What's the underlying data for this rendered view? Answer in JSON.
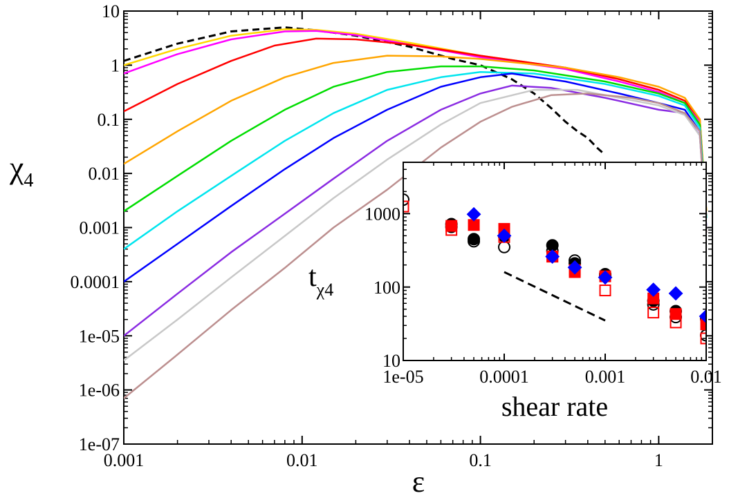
{
  "chart_data": [
    {
      "type": "line",
      "xlabel": "ε",
      "ylabel": "χ",
      "ylabel_subscript": "4",
      "xscale": "log",
      "yscale": "log",
      "xlim": [
        0.001,
        2
      ],
      "ylim": [
        1e-07,
        10
      ],
      "x_tick_labels": [
        "0.001",
        "0.01",
        "0.1",
        "1"
      ],
      "y_tick_labels": [
        "1e-07",
        "1e-06",
        "1e-05",
        "0.0001",
        "0.001",
        "0.01",
        "0.1",
        "1",
        "10"
      ],
      "grid": false,
      "series": [
        {
          "color": "#000000",
          "dashed": true,
          "points": [
            [
              0.001,
              1.2
            ],
            [
              0.002,
              2.5
            ],
            [
              0.004,
              4.2
            ],
            [
              0.008,
              5.0
            ],
            [
              0.012,
              4.4
            ],
            [
              0.02,
              3.5
            ],
            [
              0.04,
              2.2
            ],
            [
              0.07,
              1.3
            ],
            [
              0.1,
              1.0
            ],
            [
              0.15,
              0.55
            ],
            [
              0.2,
              0.3
            ],
            [
              0.25,
              0.16
            ],
            [
              0.3,
              0.09
            ],
            [
              0.35,
              0.06
            ],
            [
              0.4,
              0.045
            ],
            [
              0.45,
              0.03
            ],
            [
              0.5,
              0.022
            ]
          ]
        },
        {
          "color": "#ffd700",
          "points": [
            [
              0.001,
              1.0
            ],
            [
              0.002,
              2.0
            ],
            [
              0.004,
              3.5
            ],
            [
              0.008,
              4.6
            ],
            [
              0.012,
              4.5
            ],
            [
              0.02,
              3.8
            ],
            [
              0.04,
              2.6
            ],
            [
              0.1,
              1.5
            ],
            [
              0.3,
              0.9
            ],
            [
              0.6,
              0.55
            ],
            [
              1.0,
              0.35
            ],
            [
              1.4,
              0.22
            ],
            [
              1.7,
              0.1
            ],
            [
              1.85,
              0.002
            ]
          ]
        },
        {
          "color": "#ff00ff",
          "points": [
            [
              0.001,
              0.7
            ],
            [
              0.002,
              1.6
            ],
            [
              0.004,
              3.0
            ],
            [
              0.008,
              4.2
            ],
            [
              0.012,
              4.3
            ],
            [
              0.02,
              3.6
            ],
            [
              0.04,
              2.4
            ],
            [
              0.1,
              1.4
            ],
            [
              0.3,
              0.85
            ],
            [
              0.6,
              0.5
            ],
            [
              1.0,
              0.32
            ],
            [
              1.4,
              0.2
            ],
            [
              1.7,
              0.09
            ],
            [
              1.85,
              0.0015
            ]
          ]
        },
        {
          "color": "#ff0000",
          "points": [
            [
              0.001,
              0.14
            ],
            [
              0.002,
              0.45
            ],
            [
              0.004,
              1.2
            ],
            [
              0.007,
              2.3
            ],
            [
              0.012,
              3.1
            ],
            [
              0.02,
              3.0
            ],
            [
              0.04,
              2.4
            ],
            [
              0.1,
              1.5
            ],
            [
              0.3,
              0.9
            ],
            [
              0.6,
              0.55
            ],
            [
              1.0,
              0.35
            ],
            [
              1.4,
              0.22
            ],
            [
              1.7,
              0.1
            ],
            [
              1.85,
              0.0015
            ]
          ]
        },
        {
          "color": "#ffa500",
          "points": [
            [
              0.001,
              0.015
            ],
            [
              0.002,
              0.06
            ],
            [
              0.004,
              0.22
            ],
            [
              0.008,
              0.6
            ],
            [
              0.015,
              1.1
            ],
            [
              0.03,
              1.5
            ],
            [
              0.06,
              1.45
            ],
            [
              0.1,
              1.3
            ],
            [
              0.3,
              0.9
            ],
            [
              0.6,
              0.6
            ],
            [
              1.0,
              0.4
            ],
            [
              1.4,
              0.25
            ],
            [
              1.7,
              0.1
            ],
            [
              1.85,
              0.002
            ]
          ]
        },
        {
          "color": "#00dd00",
          "points": [
            [
              0.001,
              0.002
            ],
            [
              0.002,
              0.009
            ],
            [
              0.004,
              0.04
            ],
            [
              0.008,
              0.15
            ],
            [
              0.015,
              0.4
            ],
            [
              0.03,
              0.75
            ],
            [
              0.06,
              0.95
            ],
            [
              0.1,
              0.95
            ],
            [
              0.2,
              0.8
            ],
            [
              0.5,
              0.5
            ],
            [
              1.0,
              0.3
            ],
            [
              1.4,
              0.2
            ],
            [
              1.7,
              0.08
            ],
            [
              1.85,
              0.0015
            ]
          ]
        },
        {
          "color": "#00e5ee",
          "points": [
            [
              0.001,
              0.0004
            ],
            [
              0.002,
              0.002
            ],
            [
              0.004,
              0.009
            ],
            [
              0.008,
              0.04
            ],
            [
              0.015,
              0.13
            ],
            [
              0.03,
              0.35
            ],
            [
              0.06,
              0.6
            ],
            [
              0.1,
              0.75
            ],
            [
              0.2,
              0.7
            ],
            [
              0.5,
              0.45
            ],
            [
              1.0,
              0.27
            ],
            [
              1.4,
              0.18
            ],
            [
              1.7,
              0.07
            ],
            [
              1.85,
              0.0015
            ]
          ]
        },
        {
          "color": "#0000ff",
          "points": [
            [
              0.001,
              0.0001
            ],
            [
              0.002,
              0.0005
            ],
            [
              0.004,
              0.0025
            ],
            [
              0.008,
              0.012
            ],
            [
              0.015,
              0.045
            ],
            [
              0.03,
              0.15
            ],
            [
              0.06,
              0.4
            ],
            [
              0.1,
              0.6
            ],
            [
              0.15,
              0.7
            ],
            [
              0.3,
              0.5
            ],
            [
              0.6,
              0.3
            ],
            [
              1.0,
              0.2
            ],
            [
              1.4,
              0.15
            ],
            [
              1.7,
              0.06
            ],
            [
              1.85,
              0.001
            ]
          ]
        },
        {
          "color": "#8a2be2",
          "points": [
            [
              0.001,
              1e-05
            ],
            [
              0.002,
              6e-05
            ],
            [
              0.004,
              0.00035
            ],
            [
              0.008,
              0.0018
            ],
            [
              0.015,
              0.008
            ],
            [
              0.03,
              0.04
            ],
            [
              0.06,
              0.15
            ],
            [
              0.1,
              0.3
            ],
            [
              0.15,
              0.42
            ],
            [
              0.25,
              0.38
            ],
            [
              0.5,
              0.25
            ],
            [
              1.0,
              0.15
            ],
            [
              1.4,
              0.13
            ],
            [
              1.7,
              0.05
            ],
            [
              1.85,
              0.001
            ]
          ]
        },
        {
          "color": "#c8c8c8",
          "points": [
            [
              0.001,
              3.5e-06
            ],
            [
              0.002,
              2e-05
            ],
            [
              0.004,
              0.00012
            ],
            [
              0.008,
              0.0007
            ],
            [
              0.015,
              0.0035
            ],
            [
              0.03,
              0.018
            ],
            [
              0.06,
              0.08
            ],
            [
              0.1,
              0.2
            ],
            [
              0.2,
              0.35
            ],
            [
              0.35,
              0.35
            ],
            [
              0.6,
              0.25
            ],
            [
              1.0,
              0.18
            ],
            [
              1.4,
              0.12
            ],
            [
              1.7,
              0.05
            ],
            [
              1.85,
              0.001
            ]
          ]
        },
        {
          "color": "#bc8f8f",
          "points": [
            [
              0.001,
              7e-07
            ],
            [
              0.002,
              4.5e-06
            ],
            [
              0.004,
              3e-05
            ],
            [
              0.008,
              0.00018
            ],
            [
              0.015,
              0.001
            ],
            [
              0.03,
              0.005
            ],
            [
              0.06,
              0.03
            ],
            [
              0.1,
              0.09
            ],
            [
              0.15,
              0.17
            ],
            [
              0.25,
              0.28
            ],
            [
              0.4,
              0.3
            ],
            [
              0.7,
              0.25
            ],
            [
              1.0,
              0.2
            ],
            [
              1.4,
              0.13
            ],
            [
              1.7,
              0.06
            ],
            [
              1.85,
              0.0008
            ]
          ]
        }
      ]
    },
    {
      "type": "scatter",
      "xlabel": "shear rate",
      "ylabel": "t",
      "ylabel_subscript": "χ4",
      "xscale": "log",
      "yscale": "log",
      "xlim": [
        1e-05,
        0.01
      ],
      "ylim": [
        10,
        5000
      ],
      "x_tick_labels": [
        "1e-05",
        "0.0001",
        "0.001",
        "0.01"
      ],
      "y_tick_labels": [
        "10",
        "100",
        "1000"
      ],
      "grid": false,
      "series": [
        {
          "marker": "circle-filled",
          "color": "#000000",
          "points": [
            [
              3e-05,
              720
            ],
            [
              5e-05,
              450
            ],
            [
              0.0001,
              490
            ],
            [
              0.0003,
              370
            ],
            [
              0.0005,
              210
            ],
            [
              0.001,
              150
            ],
            [
              0.003,
              65
            ],
            [
              0.005,
              47
            ],
            [
              0.01,
              37
            ]
          ]
        },
        {
          "marker": "circle-open",
          "color": "#000000",
          "points": [
            [
              1e-05,
              1550
            ],
            [
              3e-05,
              660
            ],
            [
              5e-05,
              420
            ],
            [
              0.0001,
              350
            ],
            [
              0.0003,
              310
            ],
            [
              0.0005,
              230
            ],
            [
              0.001,
              140
            ],
            [
              0.003,
              58
            ],
            [
              0.005,
              39
            ],
            [
              0.01,
              22
            ]
          ]
        },
        {
          "marker": "square-filled",
          "color": "#ff0000",
          "points": [
            [
              3e-05,
              680
            ],
            [
              5e-05,
              700
            ],
            [
              0.0001,
              620
            ],
            [
              0.0003,
              260
            ],
            [
              0.0005,
              160
            ],
            [
              0.001,
              140
            ],
            [
              0.003,
              70
            ],
            [
              0.005,
              43
            ],
            [
              0.01,
              31
            ]
          ]
        },
        {
          "marker": "square-open",
          "color": "#ff0000",
          "points": [
            [
              1e-05,
              1250
            ],
            [
              3e-05,
              600
            ],
            [
              0.0001,
              480
            ],
            [
              0.0003,
              260
            ],
            [
              0.0005,
              170
            ],
            [
              0.001,
              90
            ],
            [
              0.003,
              45
            ],
            [
              0.005,
              33
            ],
            [
              0.01,
              20
            ]
          ]
        },
        {
          "marker": "diamond-filled",
          "color": "#0000ff",
          "points": [
            [
              5e-05,
              980
            ],
            [
              0.0001,
              500
            ],
            [
              0.0003,
              260
            ],
            [
              0.0005,
              185
            ],
            [
              0.001,
              135
            ],
            [
              0.003,
              92
            ],
            [
              0.005,
              82
            ],
            [
              0.01,
              40
            ]
          ]
        }
      ],
      "reference_line": {
        "dashed": true,
        "color": "#000000",
        "points": [
          [
            0.0001,
            160
          ],
          [
            0.001,
            35
          ]
        ]
      }
    }
  ]
}
